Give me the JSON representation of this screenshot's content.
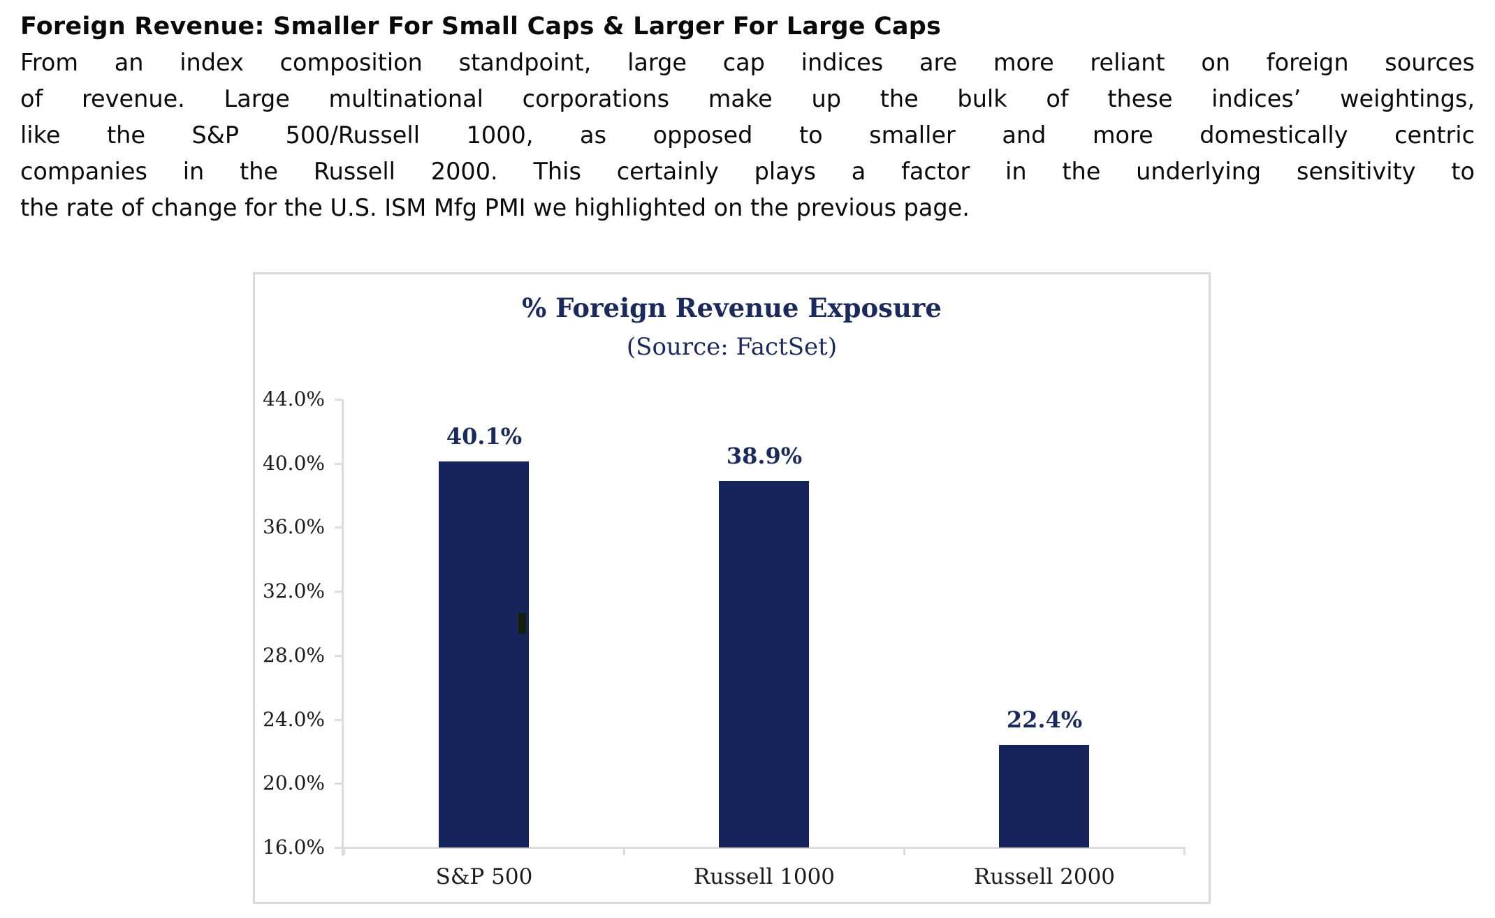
{
  "intro": {
    "heading": "Foreign Revenue: Smaller For Small Caps & Larger For Large Caps",
    "lines": [
      "From an index composition standpoint, large cap indices are more reliant on foreign sources",
      "of revenue. Large multinational corporations make up the bulk of these indices’ weightings,",
      "like the S&P 500/Russell 1000, as opposed to smaller and more domestically centric",
      "companies in the Russell 2000. This certainly plays a factor in the underlying sensitivity to",
      "the rate of change for the U.S. ISM Mfg PMI we highlighted on the previous page."
    ]
  },
  "chart_data": {
    "type": "bar",
    "title": "% Foreign Revenue Exposure",
    "subtitle": "(Source: FactSet)",
    "categories": [
      "S&P 500",
      "Russell 1000",
      "Russell 2000"
    ],
    "values": [
      40.1,
      38.9,
      22.4
    ],
    "data_labels": [
      "40.1%",
      "38.9%",
      "22.4%"
    ],
    "y_tick_labels": [
      "16.0%",
      "20.0%",
      "24.0%",
      "28.0%",
      "32.0%",
      "36.0%",
      "40.0%",
      "44.0%"
    ],
    "ylim": [
      16,
      44
    ],
    "y_step": 4,
    "xlabel": "",
    "ylabel": "",
    "grid": false,
    "legend": false,
    "colors": {
      "bar": "#17245c",
      "title_text": "#1b2a5c",
      "data_label_text": "#1b2a5c",
      "axis_line": "#dcdcdc",
      "axis_text": "#1a1a1a",
      "chart_border": "#d9d9d9"
    }
  }
}
